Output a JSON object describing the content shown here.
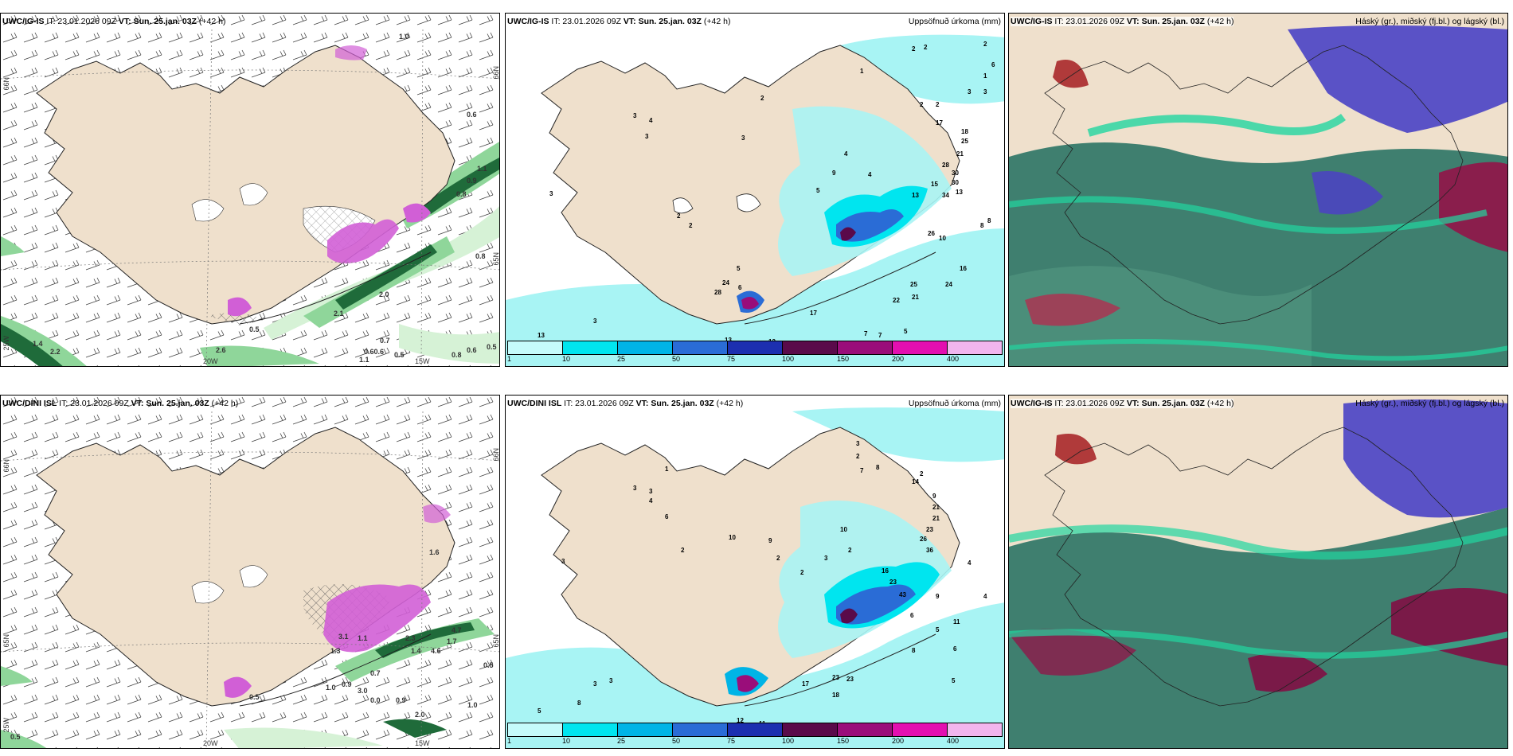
{
  "panels": {
    "p1": {
      "model": "UWC/IG-IS",
      "it": "IT: 23.01.2026 09Z",
      "vt_label": "VT:",
      "vt": "Sun. 25.jan. 03Z",
      "lead": "(+42 h)",
      "right_title": "",
      "lat_left": "65N",
      "lat_right": "65N",
      "lat_left2": "66N",
      "lat_right2": "66N",
      "lon1": "20W",
      "lon2": "15W",
      "lon3": "25W"
    },
    "p2": {
      "model": "UWC/IG-IS",
      "it": "IT: 23.01.2026 09Z",
      "vt_label": "VT:",
      "vt": "Sun. 25.jan. 03Z",
      "lead": "(+42 h)",
      "right_title": "Uppsöfnuð úrkoma (mm)"
    },
    "p3": {
      "model": "UWC/IG-IS",
      "it": "IT: 23.01.2026 09Z",
      "vt_label": "VT:",
      "vt": "Sun. 25.jan. 03Z",
      "lead": "(+42 h)",
      "right_title": "Háský (gr.), miðský (fj.bl.) og lágský (bl.)"
    },
    "p4": {
      "model": "UWC/DINI ISL",
      "it": "IT: 23.01.2026 09Z",
      "vt_label": "VT:",
      "vt": "Sun. 25.jan. 03Z",
      "lead": "(+42 h)",
      "right_title": "",
      "lat_left": "65N",
      "lat_right": "65N",
      "lat_left2": "66N",
      "lat_right2": "66N",
      "lon1": "20W",
      "lon2": "15W",
      "lon3": "25W"
    },
    "p5": {
      "model": "UWC/DINI ISL",
      "it": "IT: 23.01.2026 09Z",
      "vt_label": "VT:",
      "vt": "Sun. 25.jan. 03Z",
      "lead": "(+42 h)",
      "right_title": "Uppsöfnuð úrkoma (mm)"
    },
    "p6": {
      "model": "UWC/IG-IS",
      "it": "IT: 23.01.2026 09Z",
      "vt_label": "VT:",
      "vt": "Sun. 25.jan. 03Z",
      "lead": "(+42 h)",
      "right_title": "Háský (gr.), miðský (fj.bl.) og lágský (bl.)"
    }
  },
  "colorbar": {
    "ticks": [
      "1",
      "10",
      "25",
      "50",
      "75",
      "100",
      "150",
      "200",
      "400"
    ],
    "colors": [
      "#c6fbfb",
      "#00e5ef",
      "#00b4e6",
      "#2a6cd6",
      "#1c2fb0",
      "#5a0a4a",
      "#9a0d7a",
      "#e30fb0",
      "#f2b5ee"
    ]
  },
  "snow_labels_p1": [
    "1.0",
    "0.6",
    "1.1",
    "0.9",
    "0.8",
    "0.8",
    "2.0",
    "2.1",
    "0.5",
    "0.7",
    "0.60.6",
    "0.5",
    "0.6",
    "0.5",
    "0.8",
    "1.4",
    "2.2",
    "2.6",
    "1.1"
  ],
  "snow_labels_p4": [
    "0.5",
    "1.7",
    "3.1",
    "1.1",
    "2.3",
    "1.4",
    "4.6",
    "4.7",
    "0.5",
    "0.7",
    "1.0",
    "0.9",
    "3.0",
    "0.0",
    "0.9",
    "1.0",
    "2.0",
    "0.5",
    "1.3",
    "1.6"
  ],
  "precip_labels_p2": [
    "2",
    "2",
    "2",
    "1",
    "1",
    "3",
    "3",
    "2",
    "2",
    "2",
    "2",
    "1",
    "3",
    "6",
    "8",
    "17",
    "18",
    "25",
    "21",
    "28",
    "30",
    "30",
    "13",
    "34",
    "15",
    "13",
    "10",
    "26",
    "24",
    "25",
    "16",
    "22",
    "21",
    "17",
    "24",
    "28",
    "6",
    "5",
    "13",
    "12",
    "13",
    "3",
    "3",
    "7",
    "7",
    "5",
    "8",
    "3",
    "4",
    "4",
    "9",
    "5",
    "3",
    "3",
    "4",
    "2",
    "2"
  ],
  "precip_labels_p5": [
    "3",
    "2",
    "7",
    "8",
    "14",
    "9",
    "21",
    "21",
    "23",
    "26",
    "36",
    "10",
    "16",
    "23",
    "43",
    "4",
    "4",
    "5",
    "9",
    "11",
    "6",
    "5",
    "8",
    "6",
    "17",
    "23",
    "23",
    "18",
    "12",
    "11",
    "2",
    "2",
    "2",
    "3",
    "5",
    "6",
    "8",
    "6",
    "3",
    "3",
    "2",
    "1",
    "3",
    "3",
    "4",
    "6",
    "10",
    "9",
    "3",
    "2"
  ],
  "colors": {
    "land": "#efe0cc",
    "snowgreen_light": "#d6f2d6",
    "snowgreen": "#8fd69a",
    "snowgreen_dark": "#1f6b3a",
    "hatch": "#555",
    "magenta": "#d15fd6",
    "cyan": "#a8f4f4"
  }
}
